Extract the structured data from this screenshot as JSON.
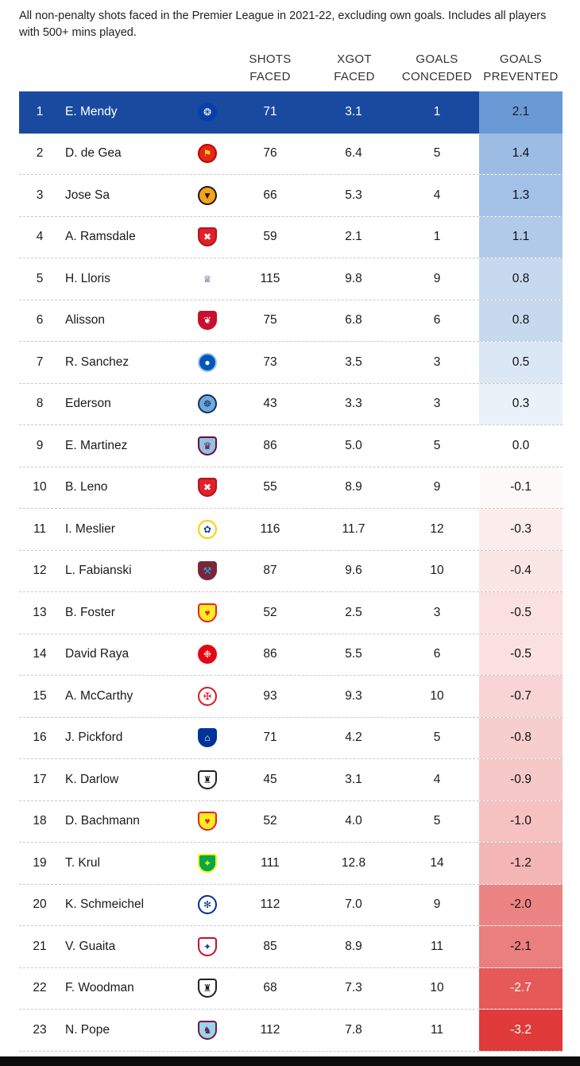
{
  "subtitle": "All non-penalty shots faced in the Premier League in 2021-22, excluding own goals. Includes all players with 500+ mins played.",
  "headers": {
    "shots_faced": [
      "SHOTS",
      "FACED"
    ],
    "xgot_faced": [
      "XGOT",
      "FACED"
    ],
    "goals_conceded": [
      "GOALS",
      "CONCEDED"
    ],
    "goals_prevented": [
      "GOALS",
      "PREVENTED"
    ]
  },
  "colors": {
    "highlight_row": "#1a4aa0",
    "positive": "#6a9ad6",
    "negative": "#e03a3a",
    "neutral": "#ffffff"
  },
  "chart_data": {
    "type": "table",
    "columns": [
      "",
      "",
      "",
      "SHOTS FACED",
      "XGOT FACED",
      "GOALS CONCEDED",
      "GOALS PREVENTED"
    ],
    "rows": [
      {
        "rank": "1",
        "name": "E. Mendy",
        "club_icon": "chelsea-crest",
        "shots_faced": "71",
        "xgot_faced": "3.1",
        "goals_conceded": "1",
        "goals_prevented": "2.1",
        "gp_value": 2.1
      },
      {
        "rank": "2",
        "name": "D. de Gea",
        "club_icon": "man-utd-crest",
        "shots_faced": "76",
        "xgot_faced": "6.4",
        "goals_conceded": "5",
        "goals_prevented": "1.4",
        "gp_value": 1.4
      },
      {
        "rank": "3",
        "name": "Jose Sa",
        "club_icon": "wolves-crest",
        "shots_faced": "66",
        "xgot_faced": "5.3",
        "goals_conceded": "4",
        "goals_prevented": "1.3",
        "gp_value": 1.3
      },
      {
        "rank": "4",
        "name": "A. Ramsdale",
        "club_icon": "arsenal-crest",
        "shots_faced": "59",
        "xgot_faced": "2.1",
        "goals_conceded": "1",
        "goals_prevented": "1.1",
        "gp_value": 1.1
      },
      {
        "rank": "5",
        "name": "H. Lloris",
        "club_icon": "tottenham-crest",
        "shots_faced": "115",
        "xgot_faced": "9.8",
        "goals_conceded": "9",
        "goals_prevented": "0.8",
        "gp_value": 0.8
      },
      {
        "rank": "6",
        "name": "Alisson",
        "club_icon": "liverpool-crest",
        "shots_faced": "75",
        "xgot_faced": "6.8",
        "goals_conceded": "6",
        "goals_prevented": "0.8",
        "gp_value": 0.8
      },
      {
        "rank": "7",
        "name": "R. Sanchez",
        "club_icon": "brighton-crest",
        "shots_faced": "73",
        "xgot_faced": "3.5",
        "goals_conceded": "3",
        "goals_prevented": "0.5",
        "gp_value": 0.5
      },
      {
        "rank": "8",
        "name": "Ederson",
        "club_icon": "man-city-crest",
        "shots_faced": "43",
        "xgot_faced": "3.3",
        "goals_conceded": "3",
        "goals_prevented": "0.3",
        "gp_value": 0.3
      },
      {
        "rank": "9",
        "name": "E. Martinez",
        "club_icon": "aston-villa-crest",
        "shots_faced": "86",
        "xgot_faced": "5.0",
        "goals_conceded": "5",
        "goals_prevented": "0.0",
        "gp_value": 0.0
      },
      {
        "rank": "10",
        "name": "B. Leno",
        "club_icon": "arsenal-crest",
        "shots_faced": "55",
        "xgot_faced": "8.9",
        "goals_conceded": "9",
        "goals_prevented": "-0.1",
        "gp_value": -0.1
      },
      {
        "rank": "11",
        "name": "I. Meslier",
        "club_icon": "leeds-crest",
        "shots_faced": "116",
        "xgot_faced": "11.7",
        "goals_conceded": "12",
        "goals_prevented": "-0.3",
        "gp_value": -0.3
      },
      {
        "rank": "12",
        "name": "L. Fabianski",
        "club_icon": "west-ham-crest",
        "shots_faced": "87",
        "xgot_faced": "9.6",
        "goals_conceded": "10",
        "goals_prevented": "-0.4",
        "gp_value": -0.4
      },
      {
        "rank": "13",
        "name": "B. Foster",
        "club_icon": "watford-crest",
        "shots_faced": "52",
        "xgot_faced": "2.5",
        "goals_conceded": "3",
        "goals_prevented": "-0.5",
        "gp_value": -0.5
      },
      {
        "rank": "14",
        "name": "David Raya",
        "club_icon": "brentford-crest",
        "shots_faced": "86",
        "xgot_faced": "5.5",
        "goals_conceded": "6",
        "goals_prevented": "-0.5",
        "gp_value": -0.5
      },
      {
        "rank": "15",
        "name": "A. McCarthy",
        "club_icon": "southampton-crest",
        "shots_faced": "93",
        "xgot_faced": "9.3",
        "goals_conceded": "10",
        "goals_prevented": "-0.7",
        "gp_value": -0.7
      },
      {
        "rank": "16",
        "name": "J. Pickford",
        "club_icon": "everton-crest",
        "shots_faced": "71",
        "xgot_faced": "4.2",
        "goals_conceded": "5",
        "goals_prevented": "-0.8",
        "gp_value": -0.8
      },
      {
        "rank": "17",
        "name": "K. Darlow",
        "club_icon": "newcastle-crest",
        "shots_faced": "45",
        "xgot_faced": "3.1",
        "goals_conceded": "4",
        "goals_prevented": "-0.9",
        "gp_value": -0.9
      },
      {
        "rank": "18",
        "name": "D. Bachmann",
        "club_icon": "watford-crest",
        "shots_faced": "52",
        "xgot_faced": "4.0",
        "goals_conceded": "5",
        "goals_prevented": "-1.0",
        "gp_value": -1.0
      },
      {
        "rank": "19",
        "name": "T. Krul",
        "club_icon": "norwich-crest",
        "shots_faced": "111",
        "xgot_faced": "12.8",
        "goals_conceded": "14",
        "goals_prevented": "-1.2",
        "gp_value": -1.2
      },
      {
        "rank": "20",
        "name": "K. Schmeichel",
        "club_icon": "leicester-crest",
        "shots_faced": "112",
        "xgot_faced": "7.0",
        "goals_conceded": "9",
        "goals_prevented": "-2.0",
        "gp_value": -2.0
      },
      {
        "rank": "21",
        "name": "V. Guaita",
        "club_icon": "crystal-palace-crest",
        "shots_faced": "85",
        "xgot_faced": "8.9",
        "goals_conceded": "11",
        "goals_prevented": "-2.1",
        "gp_value": -2.1
      },
      {
        "rank": "22",
        "name": "F. Woodman",
        "club_icon": "newcastle-crest",
        "shots_faced": "68",
        "xgot_faced": "7.3",
        "goals_conceded": "10",
        "goals_prevented": "-2.7",
        "gp_value": -2.7
      },
      {
        "rank": "23",
        "name": "N. Pope",
        "club_icon": "burnley-crest",
        "shots_faced": "112",
        "xgot_faced": "7.8",
        "goals_conceded": "11",
        "goals_prevented": "-3.2",
        "gp_value": -3.2
      }
    ]
  }
}
